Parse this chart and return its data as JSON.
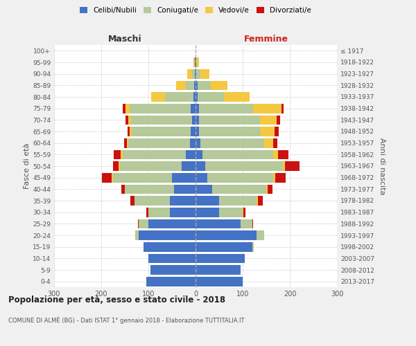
{
  "age_groups": [
    "0-4",
    "5-9",
    "10-14",
    "15-19",
    "20-24",
    "25-29",
    "30-34",
    "35-39",
    "40-44",
    "45-49",
    "50-54",
    "55-59",
    "60-64",
    "65-69",
    "70-74",
    "75-79",
    "80-84",
    "85-89",
    "90-94",
    "95-99",
    "100+"
  ],
  "birth_years": [
    "2013-2017",
    "2008-2012",
    "2003-2007",
    "1998-2002",
    "1993-1997",
    "1988-1992",
    "1983-1987",
    "1978-1982",
    "1973-1977",
    "1968-1972",
    "1963-1967",
    "1958-1962",
    "1953-1957",
    "1948-1952",
    "1943-1947",
    "1938-1942",
    "1933-1937",
    "1928-1932",
    "1923-1927",
    "1918-1922",
    "≤ 1917"
  ],
  "maschi": {
    "celibi": [
      105,
      95,
      100,
      110,
      120,
      100,
      55,
      55,
      45,
      50,
      30,
      20,
      12,
      10,
      8,
      10,
      4,
      3,
      2,
      1,
      0
    ],
    "coniugati": [
      0,
      0,
      0,
      1,
      8,
      20,
      45,
      75,
      105,
      125,
      130,
      135,
      130,
      125,
      130,
      130,
      60,
      18,
      5,
      1,
      0
    ],
    "vedovi": [
      0,
      0,
      0,
      0,
      0,
      0,
      0,
      0,
      0,
      3,
      3,
      4,
      3,
      4,
      5,
      8,
      30,
      20,
      10,
      2,
      0
    ],
    "divorziati": [
      0,
      0,
      0,
      0,
      0,
      2,
      5,
      8,
      7,
      20,
      12,
      14,
      7,
      5,
      6,
      6,
      0,
      0,
      0,
      0,
      0
    ]
  },
  "femmine": {
    "nubili": [
      100,
      95,
      105,
      120,
      130,
      95,
      50,
      50,
      35,
      25,
      20,
      15,
      10,
      8,
      7,
      7,
      5,
      5,
      2,
      1,
      0
    ],
    "coniugate": [
      0,
      0,
      0,
      3,
      15,
      25,
      50,
      80,
      115,
      140,
      165,
      150,
      135,
      130,
      130,
      115,
      55,
      28,
      8,
      2,
      0
    ],
    "vedove": [
      0,
      0,
      0,
      0,
      0,
      0,
      1,
      2,
      3,
      4,
      5,
      10,
      20,
      30,
      35,
      60,
      55,
      35,
      20,
      4,
      0
    ],
    "divorziate": [
      0,
      0,
      0,
      0,
      0,
      2,
      5,
      10,
      10,
      22,
      30,
      22,
      8,
      8,
      8,
      5,
      0,
      0,
      0,
      0,
      0
    ]
  },
  "colors": {
    "celibi_nubili": "#4472c4",
    "coniugati": "#b5c99a",
    "vedovi": "#f5c842",
    "divorziati": "#cc1111"
  },
  "xlim": 300,
  "title": "Popolazione per età, sesso e stato civile - 2018",
  "subtitle": "COMUNE DI ALMÈ (BG) - Dati ISTAT 1° gennaio 2018 - Elaborazione TUTTITALIA.IT",
  "ylabel_left": "Fasce di età",
  "ylabel_right": "Anni di nascita",
  "xlabel_maschi": "Maschi",
  "xlabel_femmine": "Femmine",
  "bg_color": "#f0f0f0",
  "plot_bg": "#ffffff"
}
